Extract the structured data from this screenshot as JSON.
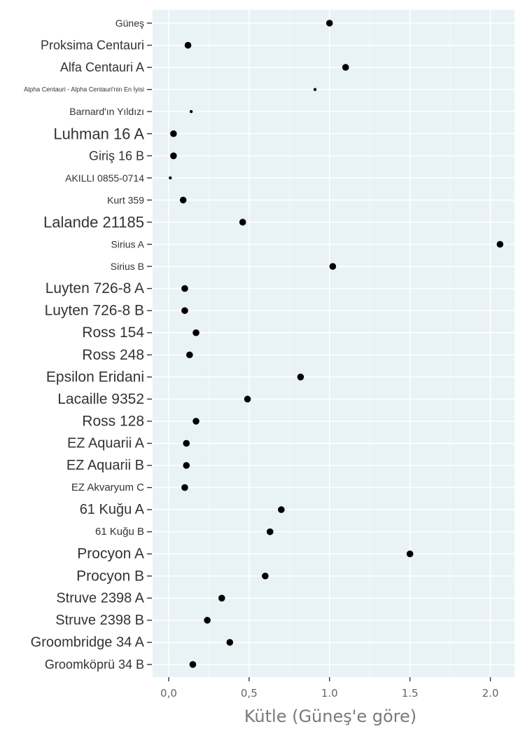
{
  "chart_data": {
    "type": "scatter",
    "title": "",
    "xlabel": "Kütle (Güneş'e göre)",
    "ylabel": "",
    "xlim": [
      -0.1,
      2.15
    ],
    "x_ticks": [
      {
        "value": 0.0,
        "label": "0,0"
      },
      {
        "value": 0.5,
        "label": "0,5"
      },
      {
        "value": 1.0,
        "label": "1.0"
      },
      {
        "value": 1.5,
        "label": "1.5"
      },
      {
        "value": 2.0,
        "label": "2.0"
      }
    ],
    "grid": true,
    "legend": "none",
    "categories": [
      "Güneş",
      "Proksima Centauri",
      "Alfa Centauri A",
      "Alpha Centauri - Alpha Centauri'nin En İyisi",
      "Barnard'ın Yıldızı",
      "Luhman 16 A",
      "Giriş 16 B",
      "AKILLI 0855-0714",
      "Kurt 359",
      "Lalande 21185",
      "Sirius A",
      "Sirius B",
      "Luyten 726-8 A",
      "Luyten 726-8 B",
      "Ross 154",
      "Ross 248",
      "Epsilon Eridani",
      "Lacaille 9352",
      "Ross 128",
      "EZ Aquarii A",
      "EZ Aquarii B",
      "EZ Akvaryum C",
      "61 Kuğu A",
      "61 Kuğu B",
      "Procyon A",
      "Procyon B",
      "Struve 2398 A",
      "Struve 2398 B",
      "Groombridge 34 A",
      "Groomköprü 34 B"
    ],
    "values": [
      1.0,
      0.12,
      1.1,
      0.91,
      0.14,
      0.03,
      0.03,
      0.01,
      0.09,
      0.46,
      2.06,
      1.02,
      0.1,
      0.1,
      0.17,
      0.13,
      0.82,
      0.49,
      0.17,
      0.11,
      0.11,
      0.1,
      0.7,
      0.63,
      1.5,
      0.6,
      0.33,
      0.24,
      0.38,
      0.15
    ],
    "label_sizes": [
      14,
      18,
      18,
      9,
      14,
      22,
      18,
      14,
      14,
      22,
      14,
      14,
      21,
      21,
      21,
      21,
      21,
      21,
      21,
      20,
      20,
      15,
      20,
      15,
      21,
      21,
      20,
      20,
      20,
      18
    ]
  }
}
